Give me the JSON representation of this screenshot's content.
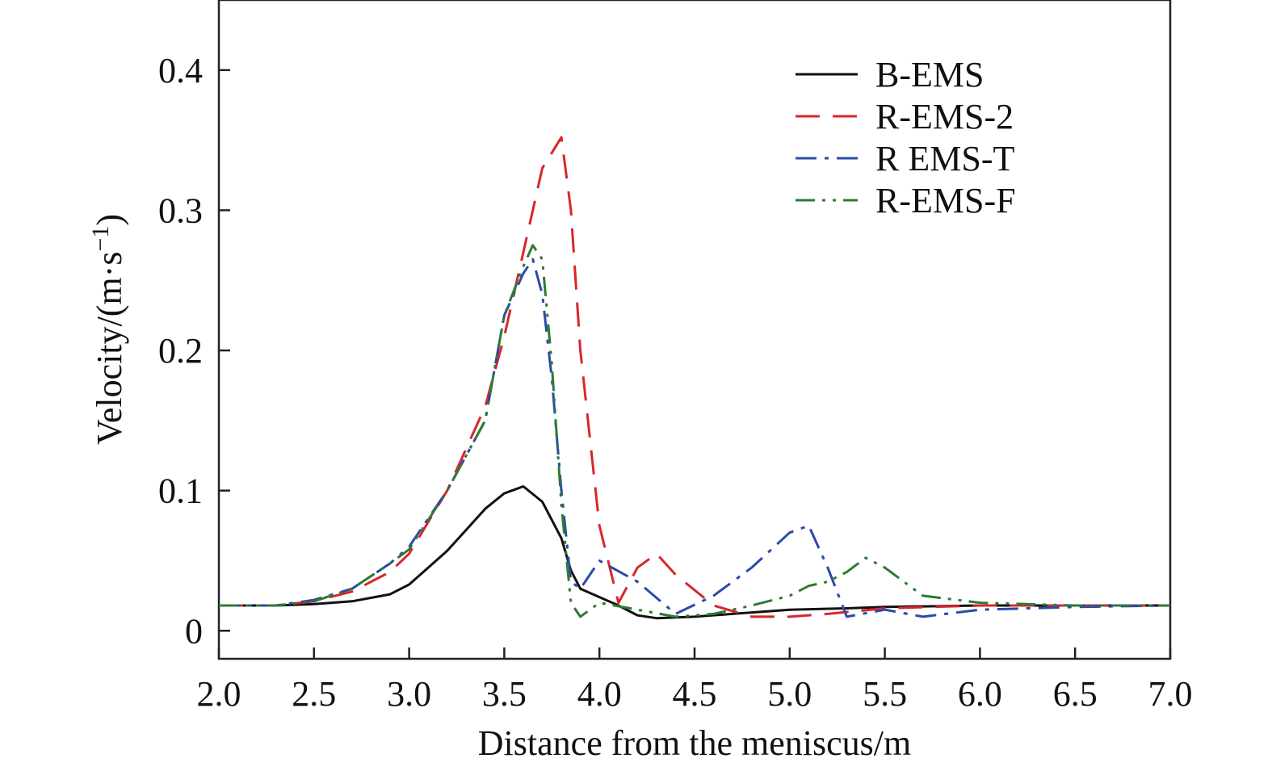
{
  "chart_data": {
    "type": "line",
    "title": "",
    "xlabel": "Distance from the meniscus/m",
    "ylabel": "Velocity/(m·s",
    "ylabel_sup": "−1",
    "ylabel_close": ")",
    "xlim": [
      2.0,
      7.0
    ],
    "ylim": [
      -0.02,
      0.45
    ],
    "x_ticks": [
      "2.0",
      "2.5",
      "3.0",
      "3.5",
      "4.0",
      "4.5",
      "5.0",
      "5.5",
      "6.0",
      "6.5",
      "7.0"
    ],
    "y_ticks": [
      "0",
      "0.1",
      "0.2",
      "0.3",
      "0.4"
    ],
    "grid": false,
    "legend_position": "top-right",
    "series": [
      {
        "name": "B-EMS",
        "color": "#111111",
        "dash": "solid",
        "x": [
          2.0,
          2.3,
          2.5,
          2.7,
          2.9,
          3.0,
          3.1,
          3.2,
          3.3,
          3.4,
          3.5,
          3.6,
          3.7,
          3.8,
          3.85,
          3.9,
          4.0,
          4.1,
          4.2,
          4.3,
          4.5,
          4.7,
          5.0,
          5.3,
          5.5,
          6.0,
          6.5,
          7.0
        ],
        "y": [
          0.018,
          0.018,
          0.019,
          0.021,
          0.026,
          0.033,
          0.045,
          0.057,
          0.072,
          0.087,
          0.098,
          0.103,
          0.092,
          0.066,
          0.043,
          0.03,
          0.024,
          0.018,
          0.011,
          0.009,
          0.01,
          0.012,
          0.015,
          0.016,
          0.017,
          0.018,
          0.018,
          0.018
        ]
      },
      {
        "name": "R-EMS-2",
        "color": "#d8262c",
        "dash": "dashed",
        "x": [
          2.0,
          2.3,
          2.5,
          2.7,
          2.9,
          3.0,
          3.2,
          3.4,
          3.5,
          3.6,
          3.7,
          3.8,
          3.85,
          3.9,
          4.0,
          4.1,
          4.2,
          4.3,
          4.4,
          4.6,
          4.8,
          5.0,
          5.2,
          5.5,
          6.0,
          6.5,
          7.0
        ],
        "y": [
          0.018,
          0.018,
          0.021,
          0.028,
          0.042,
          0.055,
          0.1,
          0.16,
          0.21,
          0.27,
          0.33,
          0.352,
          0.3,
          0.2,
          0.075,
          0.02,
          0.045,
          0.055,
          0.04,
          0.018,
          0.01,
          0.01,
          0.012,
          0.016,
          0.018,
          0.018,
          0.018
        ]
      },
      {
        "name": "R EMS-T",
        "color": "#2b4aa8",
        "dash": "dashdot",
        "x": [
          2.0,
          2.3,
          2.5,
          2.7,
          2.9,
          3.0,
          3.2,
          3.4,
          3.5,
          3.6,
          3.65,
          3.7,
          3.75,
          3.8,
          3.85,
          3.9,
          4.0,
          4.2,
          4.4,
          4.6,
          4.8,
          5.0,
          5.1,
          5.2,
          5.3,
          5.5,
          5.7,
          6.0,
          6.5,
          7.0
        ],
        "y": [
          0.018,
          0.018,
          0.022,
          0.03,
          0.048,
          0.06,
          0.1,
          0.15,
          0.225,
          0.255,
          0.265,
          0.24,
          0.18,
          0.1,
          0.035,
          0.03,
          0.05,
          0.035,
          0.012,
          0.025,
          0.045,
          0.07,
          0.075,
          0.045,
          0.01,
          0.015,
          0.01,
          0.015,
          0.017,
          0.018
        ]
      },
      {
        "name": "R-EMS-F",
        "color": "#2f7a34",
        "dash": "dashdotdot",
        "x": [
          2.0,
          2.3,
          2.5,
          2.7,
          2.9,
          3.0,
          3.2,
          3.4,
          3.5,
          3.6,
          3.65,
          3.7,
          3.75,
          3.8,
          3.85,
          3.9,
          4.0,
          4.2,
          4.4,
          4.6,
          4.8,
          5.0,
          5.1,
          5.2,
          5.3,
          5.4,
          5.5,
          5.7,
          6.0,
          6.5,
          7.0
        ],
        "y": [
          0.018,
          0.018,
          0.021,
          0.03,
          0.048,
          0.058,
          0.1,
          0.15,
          0.225,
          0.26,
          0.275,
          0.265,
          0.19,
          0.09,
          0.02,
          0.01,
          0.02,
          0.015,
          0.01,
          0.012,
          0.018,
          0.025,
          0.032,
          0.035,
          0.042,
          0.052,
          0.045,
          0.025,
          0.02,
          0.018,
          0.018
        ]
      }
    ]
  }
}
